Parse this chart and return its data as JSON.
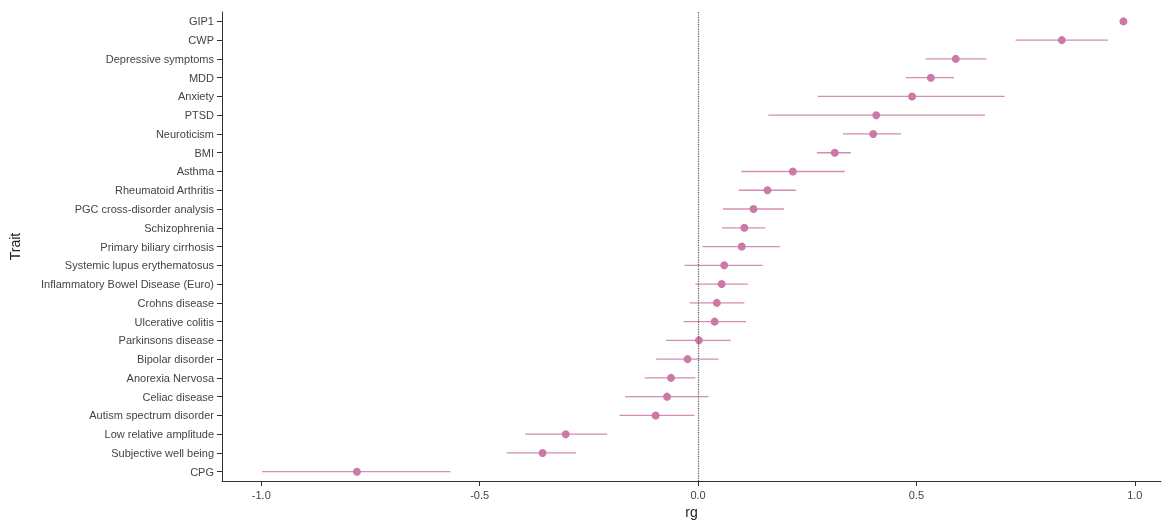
{
  "chart_data": {
    "type": "scatter",
    "orientation": "horizontal",
    "xlabel": "rg",
    "ylabel": "Trait",
    "categories": [
      "GIP1",
      "CWP",
      "Depressive symptoms",
      "MDD",
      "Anxiety",
      "PTSD",
      "Neuroticism",
      "BMI",
      "Asthma",
      "Rheumatoid Arthritis",
      "PGC cross-disorder analysis",
      "Schizophrenia",
      "Primary biliary cirrhosis",
      "Systemic lupus erythematosus",
      "Inflammatory Bowel Disease (Euro)",
      "Crohns disease",
      "Ulcerative colitis",
      "Parkinsons disease",
      "Bipolar disorder",
      "Anorexia Nervosa",
      "Celiac disease",
      "Autism spectrum disorder",
      "Low relative amplitude",
      "Subjective well being",
      "CPG"
    ],
    "series": [
      {
        "color": "#cc79a7",
        "values": [
          0.974,
          0.833,
          0.59,
          0.533,
          0.49,
          0.408,
          0.401,
          0.313,
          0.217,
          0.159,
          0.127,
          0.106,
          0.1,
          0.06,
          0.054,
          0.043,
          0.038,
          0.002,
          -0.024,
          -0.062,
          -0.071,
          -0.097,
          -0.303,
          -0.356,
          -0.781
        ],
        "errors": [
          null,
          [
            0.727,
            0.939
          ],
          [
            0.521,
            0.66
          ],
          [
            0.476,
            0.586
          ],
          [
            0.274,
            0.702
          ],
          [
            0.161,
            0.657
          ],
          [
            0.332,
            0.465
          ],
          [
            0.272,
            0.35
          ],
          [
            0.099,
            0.336
          ],
          [
            0.093,
            0.224
          ],
          [
            0.057,
            0.197
          ],
          [
            0.055,
            0.154
          ],
          [
            0.01,
            0.188
          ],
          [
            -0.031,
            0.148
          ],
          [
            -0.006,
            0.114
          ],
          [
            -0.019,
            0.106
          ],
          [
            -0.033,
            0.11
          ],
          [
            -0.073,
            0.075
          ],
          [
            -0.096,
            0.047
          ],
          [
            -0.122,
            -0.006
          ],
          [
            -0.167,
            0.024
          ],
          [
            -0.18,
            -0.008
          ],
          [
            -0.396,
            -0.208
          ],
          [
            -0.438,
            -0.279
          ],
          [
            -0.998,
            -0.567
          ]
        ]
      }
    ],
    "xlim": [
      -1.09,
      1.06
    ],
    "xticks": [
      {
        "value": -1,
        "label": "-1.0"
      },
      {
        "value": -0.5,
        "label": "-0.5"
      },
      {
        "value": 0,
        "label": "0.0"
      },
      {
        "value": 0.5,
        "label": "0.5"
      },
      {
        "value": 1,
        "label": "1.0"
      }
    ],
    "ref_lines": [
      {
        "axis": "x",
        "value": 0,
        "color": "#555555",
        "line_style": "dotted"
      }
    ],
    "marker": "circle"
  }
}
